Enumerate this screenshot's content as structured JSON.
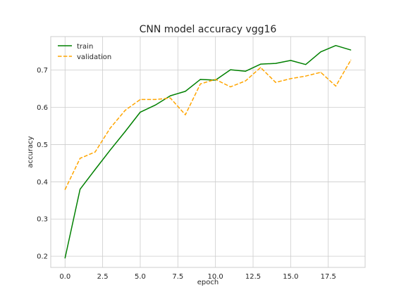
{
  "chart_data": {
    "type": "line",
    "title": "CNN model accuracy vgg16",
    "xlabel": "epoch",
    "ylabel": "accuracy",
    "xlim": [
      -0.95,
      19.95
    ],
    "ylim": [
      0.17,
      0.79
    ],
    "xticks": [
      0.0,
      2.5,
      5.0,
      7.5,
      10.0,
      12.5,
      15.0,
      17.5
    ],
    "xtick_labels": [
      "0.0",
      "2.5",
      "5.0",
      "7.5",
      "10.0",
      "12.5",
      "15.0",
      "17.5"
    ],
    "yticks": [
      0.2,
      0.3,
      0.4,
      0.5,
      0.6,
      0.7
    ],
    "ytick_labels": [
      "0.2",
      "0.3",
      "0.4",
      "0.5",
      "0.6",
      "0.7"
    ],
    "grid": true,
    "legend_position": "top-left",
    "x": [
      0,
      1,
      2,
      3,
      4,
      5,
      6,
      7,
      8,
      9,
      10,
      11,
      12,
      13,
      14,
      15,
      16,
      17,
      18,
      19
    ],
    "series": [
      {
        "name": "train",
        "color": "#008000",
        "style": "solid",
        "values": [
          0.195,
          0.38,
          0.433,
          0.485,
          0.535,
          0.587,
          0.606,
          0.631,
          0.643,
          0.675,
          0.673,
          0.701,
          0.697,
          0.716,
          0.718,
          0.726,
          0.715,
          0.749,
          0.766,
          0.754
        ]
      },
      {
        "name": "validation",
        "color": "#FFA500",
        "style": "dashed",
        "values": [
          0.379,
          0.463,
          0.48,
          0.544,
          0.592,
          0.621,
          0.621,
          0.625,
          0.58,
          0.663,
          0.675,
          0.655,
          0.671,
          0.707,
          0.667,
          0.677,
          0.684,
          0.694,
          0.657,
          0.727
        ]
      }
    ]
  }
}
